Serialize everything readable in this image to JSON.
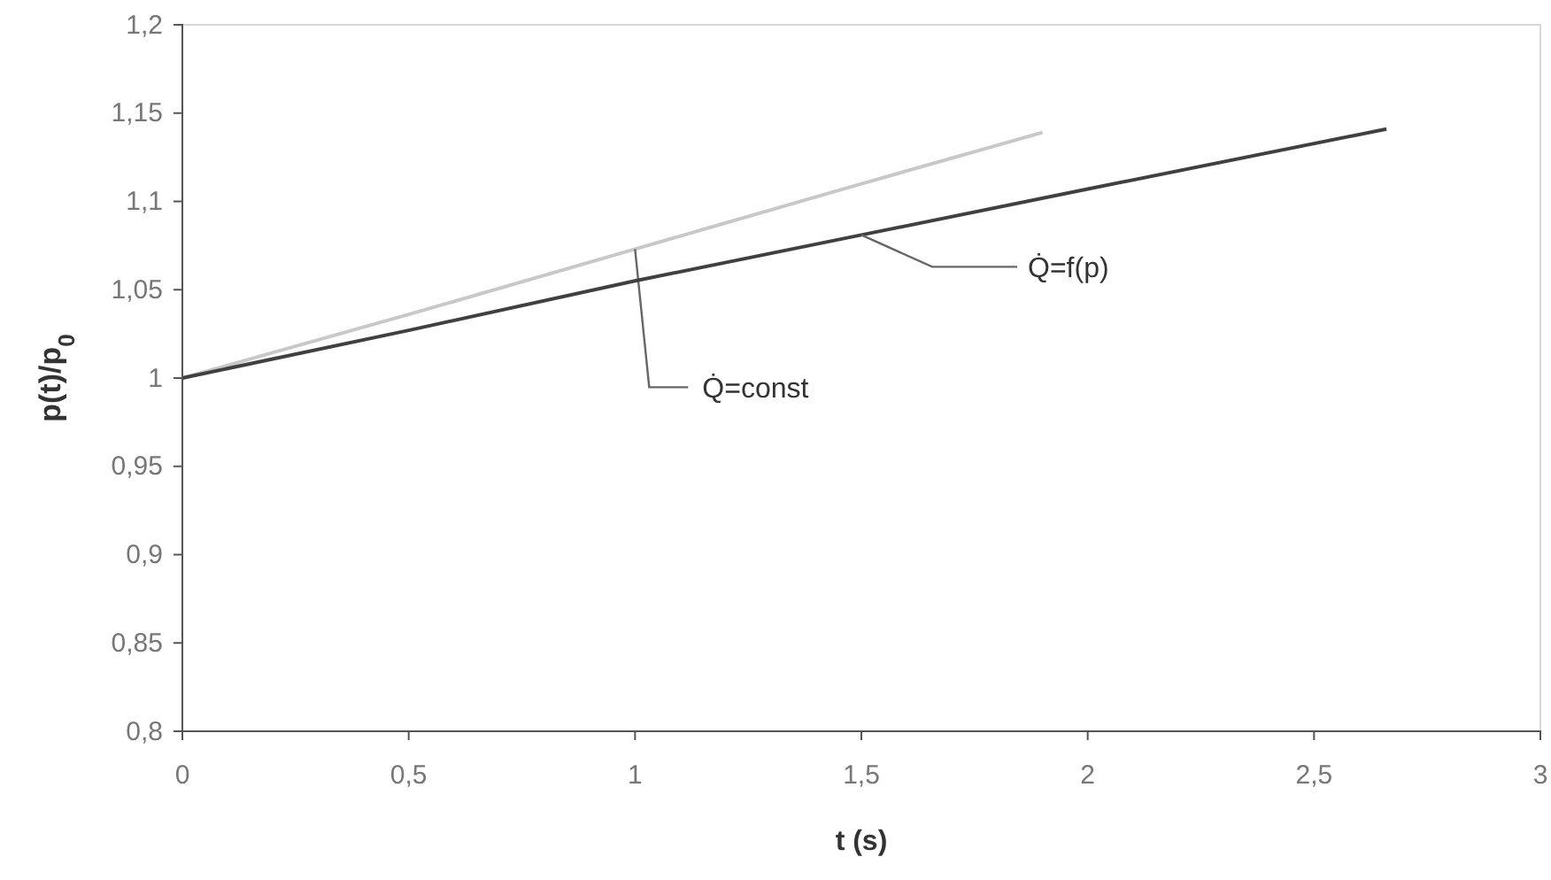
{
  "chart_data": {
    "type": "line",
    "xlabel": "t (s)",
    "ylabel": "p(t)/p$_{0}$",
    "xlim": [
      0,
      3
    ],
    "ylim": [
      0.8,
      1.2
    ],
    "xticks": [
      0,
      {
        "value": 0.5,
        "label": "0,5"
      },
      1,
      {
        "value": 1.5,
        "label": "1,5"
      },
      2,
      {
        "value": 2.5,
        "label": "2,5"
      },
      3
    ],
    "yticks": [
      {
        "value": 0.8,
        "label": "0,8"
      },
      {
        "value": 0.85,
        "label": "0,85"
      },
      {
        "value": 0.9,
        "label": "0,9"
      },
      {
        "value": 0.95,
        "label": "0,95"
      },
      1,
      {
        "value": 1.05,
        "label": "1,05"
      },
      {
        "value": 1.1,
        "label": "1,1"
      },
      {
        "value": 1.15,
        "label": "1,15"
      },
      {
        "value": 1.2,
        "label": "1,2"
      }
    ],
    "grid": false,
    "legend": false,
    "marker": "none",
    "line_style": "solid",
    "series": [
      {
        "name": "Q̇=const",
        "color": "#c8c8c8",
        "x": [
          0,
          0.5,
          1,
          1.5,
          1.9
        ],
        "values": [
          1.0,
          1.036,
          1.073,
          1.11,
          1.139
        ]
      },
      {
        "name": "Q̇=f(p)",
        "color": "#404040",
        "x": [
          0,
          0.5,
          1,
          1.5,
          2,
          2.66
        ],
        "values": [
          1.0,
          1.027,
          1.055,
          1.081,
          1.107,
          1.141
        ]
      }
    ]
  }
}
